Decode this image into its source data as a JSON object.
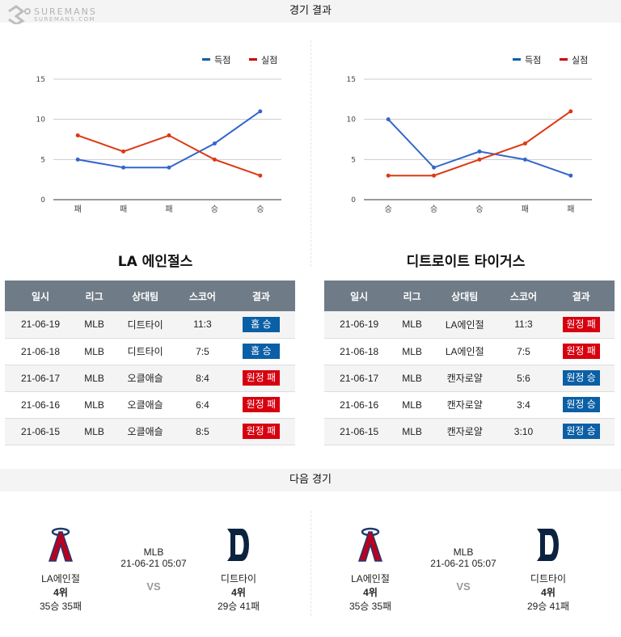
{
  "header": {
    "title": "경기 결과",
    "logo_text": "SUREMANS",
    "logo_sub": "SUREMANS.COM"
  },
  "colors": {
    "score": "#3366cc",
    "loss": "#dc3912",
    "win_badge": "#0b5fa5",
    "loss_badge": "#d7000f"
  },
  "legend": {
    "scored": "득점",
    "conceded": "실점"
  },
  "chart_data": [
    {
      "type": "line",
      "categories": [
        "패",
        "패",
        "패",
        "승",
        "승"
      ],
      "ylim": [
        0,
        15
      ],
      "yticks": [
        0,
        5,
        10,
        15
      ],
      "legend": "top-right",
      "series": [
        {
          "name": "득점",
          "values": [
            5,
            4,
            4,
            7,
            11
          ]
        },
        {
          "name": "실점",
          "values": [
            8,
            6,
            8,
            5,
            3
          ]
        }
      ]
    },
    {
      "type": "line",
      "categories": [
        "승",
        "승",
        "승",
        "패",
        "패"
      ],
      "ylim": [
        0,
        15
      ],
      "yticks": [
        0,
        5,
        10,
        15
      ],
      "legend": "top-right",
      "series": [
        {
          "name": "득점",
          "values": [
            10,
            4,
            6,
            5,
            3
          ]
        },
        {
          "name": "실점",
          "values": [
            3,
            3,
            5,
            7,
            11
          ]
        }
      ]
    }
  ],
  "teams": [
    {
      "title": "LA 에인절스",
      "headers": [
        "일시",
        "리그",
        "상대팀",
        "스코어",
        "결과"
      ],
      "rows": [
        [
          "21-06-19",
          "MLB",
          "디트타이",
          "11:3",
          "홈 승",
          "w"
        ],
        [
          "21-06-18",
          "MLB",
          "디트타이",
          "7:5",
          "홈 승",
          "w"
        ],
        [
          "21-06-17",
          "MLB",
          "오클애슬",
          "8:4",
          "원정 패",
          "l"
        ],
        [
          "21-06-16",
          "MLB",
          "오클애슬",
          "6:4",
          "원정 패",
          "l"
        ],
        [
          "21-06-15",
          "MLB",
          "오클애슬",
          "8:5",
          "원정 패",
          "l"
        ]
      ]
    },
    {
      "title": "디트로이트 타이거스",
      "headers": [
        "일시",
        "리그",
        "상대팀",
        "스코어",
        "결과"
      ],
      "rows": [
        [
          "21-06-19",
          "MLB",
          "LA에인절",
          "11:3",
          "원정 패",
          "l"
        ],
        [
          "21-06-18",
          "MLB",
          "LA에인절",
          "7:5",
          "원정 패",
          "l"
        ],
        [
          "21-06-17",
          "MLB",
          "캔자로얄",
          "5:6",
          "원정 승",
          "w"
        ],
        [
          "21-06-16",
          "MLB",
          "캔자로얄",
          "3:4",
          "원정 승",
          "w"
        ],
        [
          "21-06-15",
          "MLB",
          "캔자로얄",
          "3:10",
          "원정 승",
          "w"
        ]
      ]
    }
  ],
  "next": {
    "title": "다음 경기",
    "games": [
      {
        "league": "MLB",
        "datetime": "21-06-21 05:07",
        "vs": "VS",
        "home": {
          "name": "LA에인절",
          "rank": "4위",
          "record": "35승 35패",
          "logo": "angels-logo"
        },
        "away": {
          "name": "디트타이",
          "rank": "4위",
          "record": "29승 41패",
          "logo": "tigers-logo"
        }
      },
      {
        "league": "MLB",
        "datetime": "21-06-21 05:07",
        "vs": "VS",
        "home": {
          "name": "LA에인절",
          "rank": "4위",
          "record": "35승 35패",
          "logo": "angels-logo"
        },
        "away": {
          "name": "디트타이",
          "rank": "4위",
          "record": "29승 41패",
          "logo": "tigers-logo"
        }
      }
    ]
  }
}
